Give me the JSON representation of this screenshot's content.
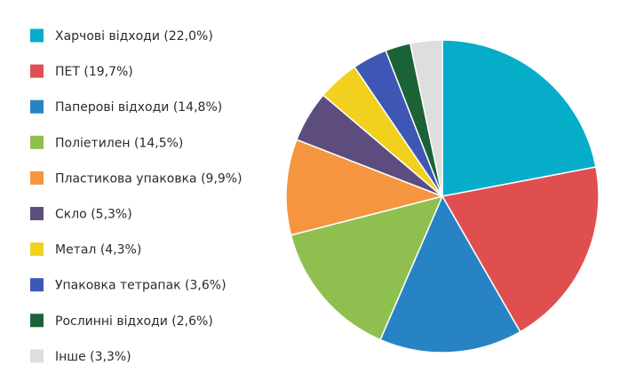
{
  "chart_data": {
    "type": "pie",
    "title": "",
    "legend_position": "left",
    "categories": [
      "Харчові відходи (22,0%)",
      "ПЕТ (19,7%)",
      "Паперові відходи (14,8%)",
      "Поліетилен (14,5%)",
      "Пластикова упаковка (9,9%)",
      "Скло (5,3%)",
      "Метал (4,3%)",
      "Упаковка тетрапак (3,6%)",
      "Рослинні відходи (2,6%)",
      "Інше (3,3%)"
    ],
    "values": [
      22.0,
      19.7,
      14.8,
      14.5,
      9.9,
      5.3,
      4.3,
      3.6,
      2.6,
      3.3
    ],
    "colors": [
      "#05adc9",
      "#e04f4f",
      "#2883c5",
      "#8fc04f",
      "#f5953f",
      "#5d4d7e",
      "#f1d11e",
      "#3f57b4",
      "#1b6337",
      "#dedede"
    ]
  }
}
